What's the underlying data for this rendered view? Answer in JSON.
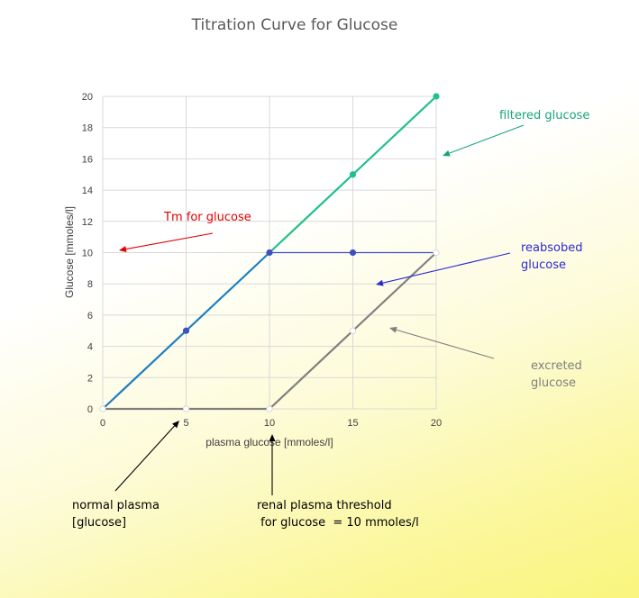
{
  "chart_data": {
    "type": "line",
    "title": "Titration Curve for Glucose",
    "xlabel": "plasma glucose [mmoles/l]",
    "ylabel": "Glucose [mmoles/l]",
    "xlim": [
      0,
      20
    ],
    "ylim": [
      0,
      20
    ],
    "x_ticks": [
      0,
      5,
      10,
      15,
      20
    ],
    "y_ticks": [
      0,
      2,
      4,
      6,
      8,
      10,
      12,
      14,
      16,
      18,
      20
    ],
    "grid": true,
    "series": [
      {
        "name": "filtered glucose",
        "color": "#1fbf8f",
        "points": [
          [
            0,
            0
          ],
          [
            5,
            5
          ],
          [
            10,
            10
          ],
          [
            15,
            15
          ],
          [
            20,
            20
          ]
        ]
      },
      {
        "name": "reabsobed glucose",
        "color": "#3f4fbf",
        "points": [
          [
            0,
            0
          ],
          [
            5,
            5
          ],
          [
            10,
            10
          ],
          [
            15,
            10
          ],
          [
            20,
            10
          ]
        ]
      },
      {
        "name": "excreted glucose",
        "color": "#7f7f7f",
        "points": [
          [
            0,
            0
          ],
          [
            5,
            0
          ],
          [
            10,
            0
          ],
          [
            15,
            5
          ],
          [
            20,
            10
          ]
        ]
      }
    ],
    "tm_segment": {
      "color": "#1f7fbf",
      "points": [
        [
          0,
          0
        ],
        [
          10,
          10
        ]
      ]
    },
    "annotations": [
      {
        "key": "filtered",
        "lines": [
          "filtered glucose"
        ],
        "color": "#1aa37a"
      },
      {
        "key": "tm",
        "lines": [
          "Tm for glucose"
        ],
        "color": "#e00000"
      },
      {
        "key": "reabsorbed",
        "lines": [
          "reabsobed",
          "glucose"
        ],
        "color": "#2a2acf"
      },
      {
        "key": "excreted",
        "lines": [
          "excreted",
          "glucose"
        ],
        "color": "#7f7f7f"
      },
      {
        "key": "normal",
        "lines": [
          "normal plasma",
          "[glucose]"
        ],
        "color": "#000000"
      },
      {
        "key": "threshold",
        "lines": [
          "renal plasma threshold",
          " for glucose  = 10 mmoles/l"
        ],
        "color": "#000000"
      }
    ]
  }
}
